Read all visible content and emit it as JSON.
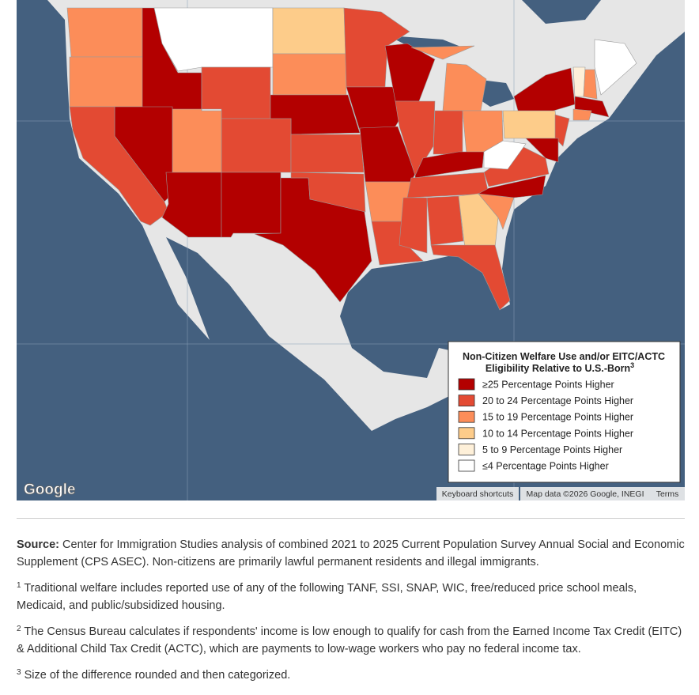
{
  "map": {
    "legend": {
      "title_line1": "Non-Citizen Welfare Use and/or EITC/ACTC",
      "title_line2": "Eligibility Relative to U.S.-Born",
      "title_footnote": "3",
      "items": [
        {
          "label": "≥25 Percentage Points Higher",
          "color": "#b30000"
        },
        {
          "label": "20 to 24 Percentage Points Higher",
          "color": "#e34a33"
        },
        {
          "label": "15 to 19 Percentage Points Higher",
          "color": "#fc8d59"
        },
        {
          "label": "10 to 14 Percentage Points Higher",
          "color": "#fdcc8a"
        },
        {
          "label": "5 to 9 Percentage Points Higher",
          "color": "#fef0d9"
        },
        {
          "label": "≤4 Percentage Points Higher",
          "color": "#ffffff"
        }
      ]
    },
    "attribution": {
      "logo": "Google",
      "keyboard": "Keyboard shortcuts",
      "map_data": "Map data ©2026 Google, INEGI",
      "terms": "Terms"
    }
  },
  "notes": {
    "source_label": "Source:",
    "source_text": "Center for Immigration Studies analysis of combined 2021 to 2025 Current Population Survey Annual Social and Economic Supplement (CPS ASEC). Non-citizens are primarily lawful permanent residents and illegal immigrants.",
    "footnotes": [
      {
        "marker": "1",
        "text": "Traditional welfare includes reported use of any of the following TANF, SSI, SNAP, WIC, free/reduced price school meals, Medicaid, and public/subsidized housing."
      },
      {
        "marker": "2",
        "text": "The Census Bureau calculates if respondents' income is low enough to qualify for cash from the Earned Income Tax Credit (EITC) & Additional Child Tax Credit (ACTC), which are payments to low-wage workers who pay no federal income tax."
      },
      {
        "marker": "3",
        "text": "Size of the difference rounded and then categorized."
      }
    ]
  }
}
